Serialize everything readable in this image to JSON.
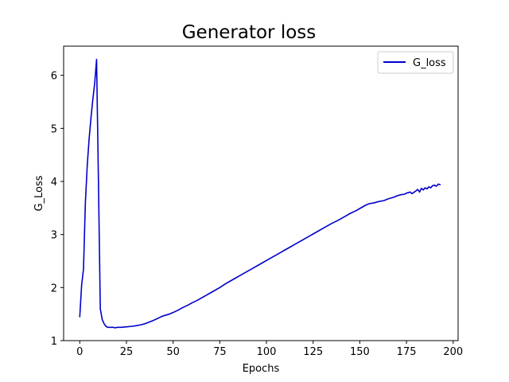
{
  "chart_data": {
    "type": "line",
    "title": "Generator loss",
    "xlabel": "Epochs",
    "ylabel": "G_Loss",
    "xlim": [
      -8.65,
      202.65
    ],
    "ylim": [
      1.0,
      6.55
    ],
    "xticks": [
      0,
      25,
      50,
      75,
      100,
      125,
      150,
      175,
      200
    ],
    "yticks": [
      1,
      2,
      3,
      4,
      5,
      6
    ],
    "grid": false,
    "legend": {
      "position": "top-right",
      "entries": [
        "G_loss"
      ]
    },
    "series": [
      {
        "name": "G_loss",
        "color": "#0000cc",
        "x": [
          0,
          1,
          2,
          3,
          4,
          5,
          6,
          7,
          8,
          9,
          10,
          11,
          12,
          13,
          14,
          15,
          16,
          17,
          18,
          19,
          20,
          22,
          25,
          28,
          30,
          33,
          35,
          38,
          40,
          43,
          45,
          48,
          50,
          53,
          55,
          58,
          60,
          63,
          65,
          68,
          70,
          73,
          75,
          78,
          80,
          83,
          85,
          88,
          90,
          93,
          95,
          98,
          100,
          103,
          105,
          108,
          110,
          113,
          115,
          118,
          120,
          123,
          125,
          128,
          130,
          133,
          135,
          138,
          140,
          143,
          145,
          148,
          150,
          153,
          155,
          158,
          160,
          163,
          165,
          168,
          170,
          172,
          174,
          175,
          177,
          178,
          180,
          181,
          182,
          183,
          184,
          185,
          186,
          187,
          188,
          189,
          190,
          191,
          192,
          193
        ],
        "y": [
          1.45,
          2.05,
          2.35,
          3.6,
          4.3,
          4.8,
          5.2,
          5.55,
          5.85,
          6.3,
          4.0,
          1.6,
          1.4,
          1.32,
          1.27,
          1.25,
          1.25,
          1.25,
          1.25,
          1.24,
          1.25,
          1.25,
          1.26,
          1.27,
          1.28,
          1.3,
          1.32,
          1.36,
          1.39,
          1.44,
          1.47,
          1.5,
          1.53,
          1.58,
          1.62,
          1.67,
          1.71,
          1.76,
          1.8,
          1.86,
          1.9,
          1.96,
          2.0,
          2.07,
          2.11,
          2.17,
          2.21,
          2.27,
          2.31,
          2.37,
          2.41,
          2.47,
          2.51,
          2.57,
          2.61,
          2.67,
          2.71,
          2.77,
          2.81,
          2.87,
          2.91,
          2.97,
          3.01,
          3.07,
          3.11,
          3.17,
          3.21,
          3.26,
          3.3,
          3.36,
          3.4,
          3.45,
          3.49,
          3.55,
          3.58,
          3.6,
          3.62,
          3.64,
          3.67,
          3.7,
          3.73,
          3.75,
          3.76,
          3.78,
          3.8,
          3.77,
          3.82,
          3.85,
          3.8,
          3.87,
          3.84,
          3.88,
          3.86,
          3.9,
          3.88,
          3.92,
          3.93,
          3.91,
          3.95,
          3.94
        ]
      }
    ]
  }
}
